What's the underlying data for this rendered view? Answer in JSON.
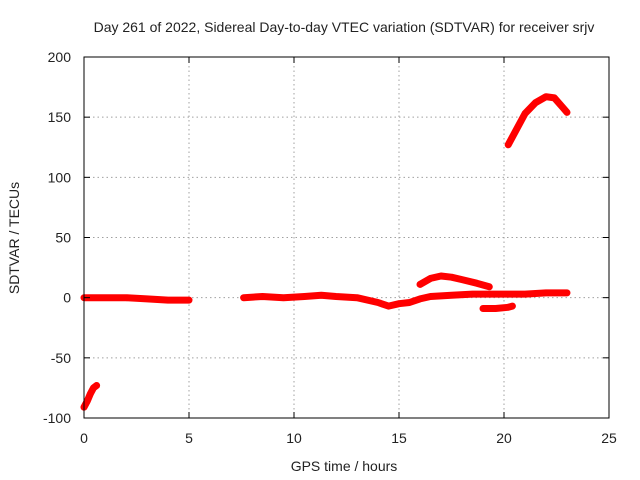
{
  "chart_data": {
    "type": "scatter",
    "title": "Day 261 of 2022, Sidereal Day-to-day VTEC variation (SDTVAR) for receiver srjv",
    "xlabel": "GPS time / hours",
    "ylabel": "SDTVAR / TECUs",
    "xlim": [
      0,
      25
    ],
    "ylim": [
      -100,
      200
    ],
    "xticks": [
      0,
      5,
      10,
      15,
      20,
      25
    ],
    "yticks": [
      -100,
      -50,
      0,
      50,
      100,
      150,
      200
    ],
    "grid": true,
    "legend": "none",
    "color": "#ff0000",
    "series": [
      {
        "name": "seg-1",
        "points": [
          [
            0.0,
            -91
          ],
          [
            0.15,
            -86
          ],
          [
            0.3,
            -80
          ],
          [
            0.45,
            -75
          ],
          [
            0.6,
            -73
          ]
        ]
      },
      {
        "name": "seg-2",
        "points": [
          [
            0.0,
            0
          ],
          [
            1.0,
            0
          ],
          [
            2.0,
            0
          ],
          [
            3.0,
            -1
          ],
          [
            4.0,
            -2
          ],
          [
            5.0,
            -2
          ]
        ]
      },
      {
        "name": "seg-3",
        "points": [
          [
            7.6,
            0
          ],
          [
            8.5,
            1
          ],
          [
            9.5,
            0
          ],
          [
            10.5,
            1
          ],
          [
            11.3,
            2
          ],
          [
            12.0,
            1
          ],
          [
            13.0,
            0
          ],
          [
            14.0,
            -4
          ],
          [
            14.5,
            -7
          ],
          [
            15.0,
            -5
          ],
          [
            15.5,
            -4
          ],
          [
            16.0,
            -1
          ],
          [
            16.5,
            1
          ],
          [
            17.5,
            2
          ],
          [
            18.5,
            3
          ],
          [
            20.0,
            3
          ],
          [
            21.0,
            3
          ],
          [
            22.0,
            4
          ],
          [
            23.0,
            4
          ]
        ]
      },
      {
        "name": "seg-4",
        "points": [
          [
            16.0,
            11
          ],
          [
            16.5,
            16
          ],
          [
            17.0,
            18
          ],
          [
            17.5,
            17
          ],
          [
            18.0,
            15
          ],
          [
            18.7,
            12
          ],
          [
            19.3,
            9
          ]
        ]
      },
      {
        "name": "seg-5",
        "points": [
          [
            19.0,
            -9
          ],
          [
            19.6,
            -9
          ],
          [
            20.2,
            -8
          ],
          [
            20.4,
            -7
          ]
        ]
      },
      {
        "name": "seg-6",
        "points": [
          [
            20.2,
            127
          ],
          [
            20.6,
            140
          ],
          [
            21.0,
            153
          ],
          [
            21.5,
            162
          ],
          [
            22.0,
            167
          ],
          [
            22.4,
            166
          ],
          [
            22.8,
            158
          ],
          [
            23.0,
            154
          ]
        ]
      }
    ]
  }
}
